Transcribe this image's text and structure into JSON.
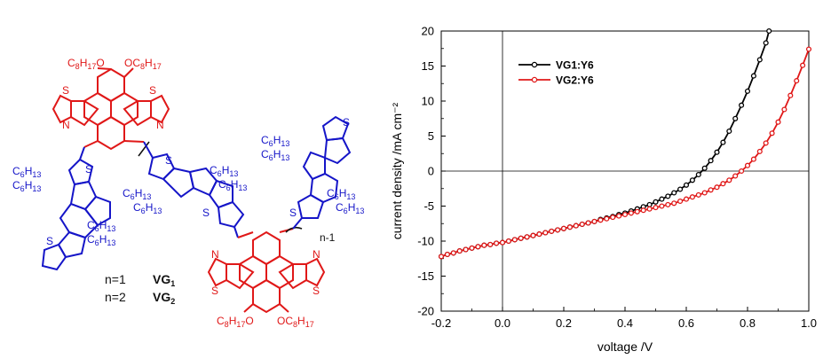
{
  "molecule": {
    "labels": {
      "alkoxy_left": "C8H17O",
      "alkoxy_right": "OC8H17",
      "hexyl": "C6H13",
      "thiadiazole_s": "S",
      "thiadiazole_n": "N",
      "n_minus_1": "n-1"
    },
    "legend_rows": [
      {
        "n": "n=1",
        "name": "VG1"
      },
      {
        "n": "n=2",
        "name": "VG2"
      }
    ],
    "colors": {
      "donor": "#1515c8",
      "acceptor": "#e01818"
    }
  },
  "chart_data": {
    "type": "line",
    "title": "",
    "xlabel": "voltage /V",
    "ylabel": "current density /mA cm⁻²",
    "xlim": [
      -0.2,
      1.0
    ],
    "ylim": [
      -20,
      20
    ],
    "xticks": [
      "-0.2",
      "0.0",
      "0.2",
      "0.4",
      "0.6",
      "0.8",
      "1.0"
    ],
    "yticks": [
      "-20",
      "-15",
      "-10",
      "-5",
      "0",
      "5",
      "10",
      "15",
      "20"
    ],
    "grid": false,
    "zero_lines": true,
    "legend_position": "top-left",
    "series": [
      {
        "name": "VG1:Y6",
        "color": "#000000",
        "marker": "circle",
        "points": [
          [
            -0.2,
            -12.2
          ],
          [
            -0.18,
            -11.9
          ],
          [
            -0.16,
            -11.7
          ],
          [
            -0.14,
            -11.4
          ],
          [
            -0.12,
            -11.2
          ],
          [
            -0.1,
            -11.0
          ],
          [
            -0.08,
            -10.8
          ],
          [
            -0.06,
            -10.6
          ],
          [
            -0.04,
            -10.5
          ],
          [
            -0.02,
            -10.3
          ],
          [
            0.0,
            -10.2
          ],
          [
            0.02,
            -10.0
          ],
          [
            0.04,
            -9.8
          ],
          [
            0.06,
            -9.6
          ],
          [
            0.08,
            -9.4
          ],
          [
            0.1,
            -9.2
          ],
          [
            0.12,
            -9.0
          ],
          [
            0.14,
            -8.8
          ],
          [
            0.16,
            -8.6
          ],
          [
            0.18,
            -8.4
          ],
          [
            0.2,
            -8.2
          ],
          [
            0.22,
            -8.0
          ],
          [
            0.24,
            -7.8
          ],
          [
            0.26,
            -7.6
          ],
          [
            0.28,
            -7.4
          ],
          [
            0.3,
            -7.2
          ],
          [
            0.32,
            -6.9
          ],
          [
            0.34,
            -6.7
          ],
          [
            0.36,
            -6.5
          ],
          [
            0.38,
            -6.2
          ],
          [
            0.4,
            -6.0
          ],
          [
            0.42,
            -5.7
          ],
          [
            0.44,
            -5.4
          ],
          [
            0.46,
            -5.1
          ],
          [
            0.48,
            -4.8
          ],
          [
            0.5,
            -4.4
          ],
          [
            0.52,
            -4.0
          ],
          [
            0.54,
            -3.6
          ],
          [
            0.56,
            -3.1
          ],
          [
            0.58,
            -2.6
          ],
          [
            0.6,
            -2.0
          ],
          [
            0.62,
            -1.3
          ],
          [
            0.64,
            -0.5
          ],
          [
            0.66,
            0.4
          ],
          [
            0.68,
            1.5
          ],
          [
            0.7,
            2.7
          ],
          [
            0.72,
            4.1
          ],
          [
            0.74,
            5.7
          ],
          [
            0.76,
            7.5
          ],
          [
            0.78,
            9.4
          ],
          [
            0.8,
            11.4
          ],
          [
            0.82,
            13.6
          ],
          [
            0.84,
            15.9
          ],
          [
            0.86,
            18.3
          ],
          [
            0.87,
            20.0
          ]
        ]
      },
      {
        "name": "VG2:Y6",
        "color": "#e01818",
        "marker": "circle",
        "points": [
          [
            -0.2,
            -12.2
          ],
          [
            -0.18,
            -11.9
          ],
          [
            -0.16,
            -11.7
          ],
          [
            -0.14,
            -11.4
          ],
          [
            -0.12,
            -11.2
          ],
          [
            -0.1,
            -11.0
          ],
          [
            -0.08,
            -10.8
          ],
          [
            -0.06,
            -10.6
          ],
          [
            -0.04,
            -10.5
          ],
          [
            -0.02,
            -10.3
          ],
          [
            0.0,
            -10.2
          ],
          [
            0.02,
            -10.0
          ],
          [
            0.04,
            -9.8
          ],
          [
            0.06,
            -9.6
          ],
          [
            0.08,
            -9.4
          ],
          [
            0.1,
            -9.2
          ],
          [
            0.12,
            -9.0
          ],
          [
            0.14,
            -8.8
          ],
          [
            0.16,
            -8.6
          ],
          [
            0.18,
            -8.4
          ],
          [
            0.2,
            -8.2
          ],
          [
            0.22,
            -8.0
          ],
          [
            0.24,
            -7.8
          ],
          [
            0.26,
            -7.6
          ],
          [
            0.28,
            -7.4
          ],
          [
            0.3,
            -7.2
          ],
          [
            0.32,
            -7.0
          ],
          [
            0.34,
            -6.8
          ],
          [
            0.36,
            -6.6
          ],
          [
            0.38,
            -6.4
          ],
          [
            0.4,
            -6.2
          ],
          [
            0.42,
            -6.0
          ],
          [
            0.44,
            -5.8
          ],
          [
            0.46,
            -5.6
          ],
          [
            0.48,
            -5.4
          ],
          [
            0.5,
            -5.2
          ],
          [
            0.52,
            -5.0
          ],
          [
            0.54,
            -4.8
          ],
          [
            0.56,
            -4.6
          ],
          [
            0.58,
            -4.3
          ],
          [
            0.6,
            -4.0
          ],
          [
            0.62,
            -3.7
          ],
          [
            0.64,
            -3.4
          ],
          [
            0.66,
            -3.1
          ],
          [
            0.68,
            -2.7
          ],
          [
            0.7,
            -2.3
          ],
          [
            0.72,
            -1.8
          ],
          [
            0.74,
            -1.3
          ],
          [
            0.76,
            -0.7
          ],
          [
            0.78,
            0.0
          ],
          [
            0.8,
            0.8
          ],
          [
            0.82,
            1.7
          ],
          [
            0.84,
            2.8
          ],
          [
            0.86,
            4.0
          ],
          [
            0.88,
            5.4
          ],
          [
            0.9,
            7.0
          ],
          [
            0.92,
            8.8
          ],
          [
            0.94,
            10.8
          ],
          [
            0.96,
            12.9
          ],
          [
            0.98,
            15.1
          ],
          [
            1.0,
            17.4
          ]
        ]
      }
    ]
  }
}
